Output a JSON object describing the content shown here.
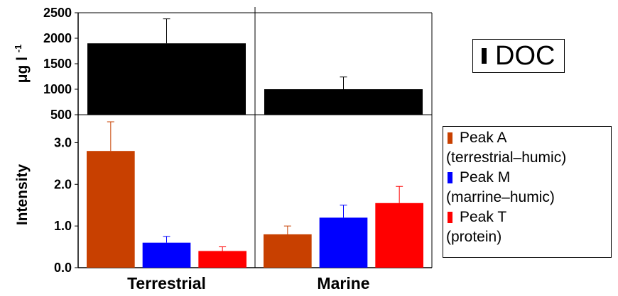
{
  "chart_data": [
    {
      "type": "bar",
      "categories": [
        "Terrestrial",
        "Marine"
      ],
      "ylabel": "μg l-1",
      "ylim": [
        500,
        2500
      ],
      "yticks": [
        500,
        1000,
        1500,
        2000,
        2500
      ],
      "series": [
        {
          "name": "DOC",
          "color": "#000000",
          "values": [
            1900,
            1000
          ],
          "errors": [
            480,
            240
          ]
        }
      ],
      "legend": {
        "placement": "right",
        "label": "DOC"
      },
      "grid": false
    },
    {
      "type": "bar",
      "categories": [
        "Terrestrial",
        "Marine"
      ],
      "ylabel": "Intensity",
      "ylim": [
        0,
        3.5
      ],
      "yticks": [
        "0.0",
        "1.0",
        "2.0",
        "3.0"
      ],
      "series": [
        {
          "name": "Peak A",
          "description": "(terrestrial–humic)",
          "color": "#C84000",
          "values": [
            2.8,
            0.8
          ],
          "errors": [
            0.7,
            0.2
          ]
        },
        {
          "name": "Peak M",
          "description": "(marrine–humic)",
          "color": "#0000FF",
          "values": [
            0.6,
            1.2
          ],
          "errors": [
            0.15,
            0.3
          ]
        },
        {
          "name": "Peak T",
          "description": "(protein)",
          "color": "#FF0000",
          "values": [
            0.4,
            1.55
          ],
          "errors": [
            0.1,
            0.4
          ]
        }
      ],
      "legend": {
        "placement": "right"
      },
      "grid": false
    }
  ]
}
